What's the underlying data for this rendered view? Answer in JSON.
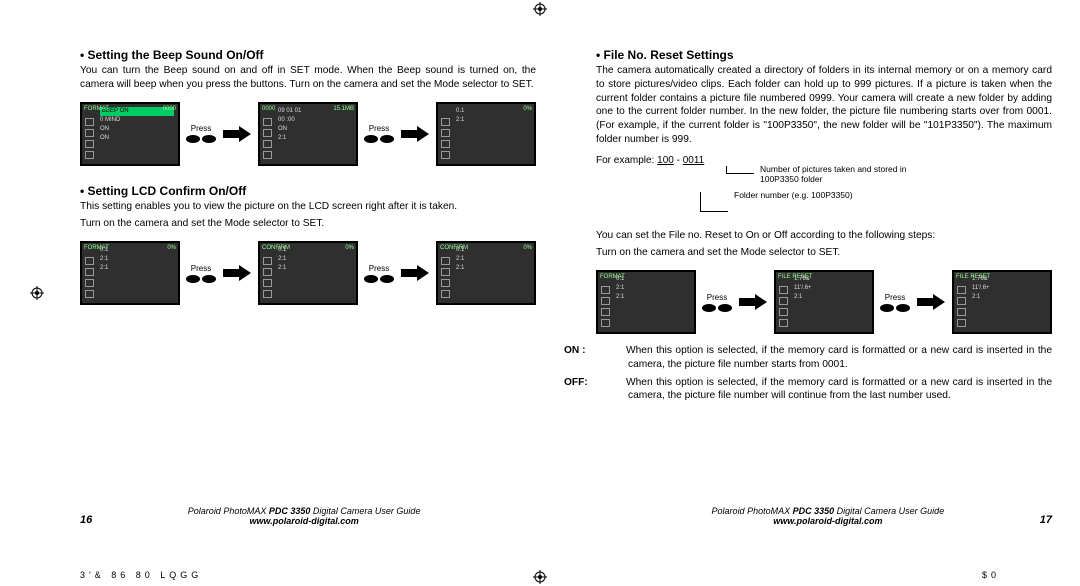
{
  "left": {
    "beep": {
      "title": "• Setting the Beep Sound On/Off",
      "p1": "You can turn the Beep sound on and off in SET mode. When the Beep sound is turned on, the camera will beep when you press the buttons. Turn on the camera and set the Mode selector to SET.",
      "press": "Press",
      "screens": [
        {
          "top_l": "FORMAT",
          "top_r": "0000",
          "hl": "BEEP ON",
          "lines": [
            "0 MIND",
            "ON",
            "ON"
          ]
        },
        {
          "top_l": "0000",
          "top_r": "15.1MB",
          "lines": [
            "09 01 01",
            "00 :00",
            "ON",
            "2:1"
          ]
        },
        {
          "top_l": "",
          "top_r": "0%",
          "lines": [
            "0.1",
            "2:1"
          ]
        }
      ]
    },
    "confirm": {
      "title": "• Setting LCD Confirm On/Off",
      "p1": "This setting enables you to view the picture on the LCD screen right after it is taken.",
      "p2": "Turn on the camera and set the Mode selector to SET.",
      "press": "Press",
      "screens": [
        {
          "top_l": "FORMAT",
          "top_r": "0%",
          "lines": [
            "0.1",
            "2:1",
            "2:1"
          ]
        },
        {
          "top_l": "CONFIRM",
          "top_r": "0%",
          "lines": [
            "0.1",
            "2:1",
            "2:1"
          ]
        },
        {
          "top_l": "CONFIRM",
          "top_r": "0%",
          "lines": [
            "0.1",
            "2:1",
            "2:1"
          ]
        }
      ]
    },
    "page_number": "16",
    "footer_l1_a": "Polaroid PhotoMAX",
    "footer_l1_b": "PDC 3350",
    "footer_l1_c": "Digital Camera User Guide",
    "footer_l2": "www.polaroid-digital.com"
  },
  "right": {
    "fileno": {
      "title": "• File No. Reset Settings",
      "p1": "The camera automatically created a directory of folders in its internal memory or on a memory card to store pictures/video clips. Each folder can hold up to 999 pictures. If a picture is taken when the current folder contains a picture file numbered 0999. Your camera will create a new folder by adding one to the current folder number. In the new folder, the picture file numbering starts over from 0001. (For example, if the current folder is \"100P3350\", the new folder will be \"101P3350\"). The maximum folder number is 999.",
      "example_head": "For example:",
      "example_folder": "100",
      "example_file": "0011",
      "call1": "Number of pictures taken and stored in 100P3350 folder",
      "call2": "Folder number (e.g. 100P3350)",
      "p2": "You can set the File no. Reset to On or Off according to the following steps:",
      "p3": "Turn on the camera and set the Mode selector to SET.",
      "press": "Press",
      "screens": [
        {
          "top_l": "FORMAT",
          "top_r": "",
          "lines": [
            "0.1",
            "2:1",
            "2:1"
          ]
        },
        {
          "top_l": "FILE RESET",
          "top_r": "",
          "lines": [
            "1.76&",
            "11'/.6+",
            "2:1"
          ]
        },
        {
          "top_l": "FILE RESET",
          "top_r": "",
          "lines": [
            "1.76&",
            "11'/.6+",
            "2:1"
          ]
        }
      ],
      "on_label": "ON :",
      "on_text": "When this option is selected, if the memory card is formatted or a new card is inserted in the camera, the picture file number starts from 0001.",
      "off_label": "OFF:",
      "off_text": "When this option is selected, if the memory card is formatted or a new card is inserted in the camera, the picture file number will continue from the last number used."
    },
    "page_number": "17",
    "footer_l1_a": "Polaroid PhotoMAX",
    "footer_l1_b": "PDC 3350",
    "footer_l1_c": "Digital Camera User Guide",
    "footer_l2": "www.polaroid-digital.com"
  },
  "impos_left": "3'& 86 80 LQGG",
  "impos_right": "$0"
}
